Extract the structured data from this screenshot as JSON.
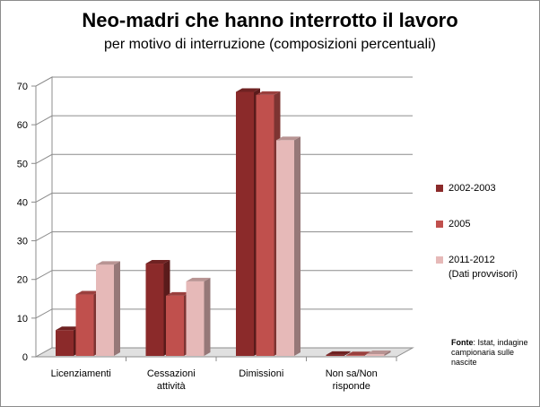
{
  "chart_data": {
    "type": "bar",
    "title": "Neo-madri che hanno interrotto il lavoro",
    "subtitle": "per motivo di interruzione (composizioni percentuali)",
    "categories": [
      "Licenziamenti",
      "Cessazioni attività",
      "Dimissioni",
      "Non sa/Non risponde"
    ],
    "series": [
      {
        "name": "2002-2003",
        "values": [
          6.9,
          24.1,
          68.5,
          0.5
        ],
        "color": "#8b2a2a"
      },
      {
        "name": "2005",
        "values": [
          16.1,
          15.8,
          67.7,
          0.4
        ],
        "color": "#c0504d"
      },
      {
        "name": "2011-2012",
        "name_note": "(Dati provvisori)",
        "values": [
          23.8,
          19.5,
          56.0,
          0.7
        ],
        "color": "#e6b9b8"
      }
    ],
    "ylim": [
      0,
      70
    ],
    "yticks": [
      0,
      10,
      20,
      30,
      40,
      50,
      60,
      70
    ],
    "grid": true,
    "legend_position": "right",
    "source_label": "Fonte",
    "source_text": ": Istat, indagine campionaria sulle nascite"
  }
}
